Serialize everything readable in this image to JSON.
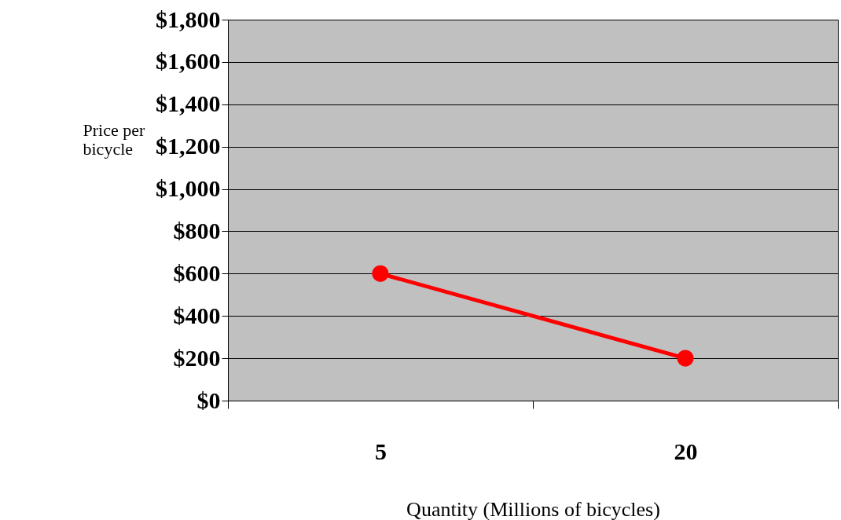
{
  "chart_data": {
    "type": "line",
    "xlabel": "Quantity (Millions of bicycles)",
    "ylabel": "Price per bicycle",
    "categories": [
      "5",
      "20"
    ],
    "series": [
      {
        "color": "#ff0000",
        "values": [
          600,
          200
        ]
      }
    ],
    "ylim": [
      0,
      1800
    ],
    "yticks": [
      {
        "value": 0,
        "label": "$0"
      },
      {
        "value": 200,
        "label": "$200"
      },
      {
        "value": 400,
        "label": "$400"
      },
      {
        "value": 600,
        "label": "$600"
      },
      {
        "value": 800,
        "label": "$800"
      },
      {
        "value": 1000,
        "label": "$1,000"
      },
      {
        "value": 1200,
        "label": "$1,200"
      },
      {
        "value": 1400,
        "label": "$1,400"
      },
      {
        "value": 1600,
        "label": "$1,600"
      },
      {
        "value": 1800,
        "label": "$1,800"
      }
    ],
    "grid": "y",
    "legend": false,
    "marker": "circle",
    "line_style": "solid"
  }
}
